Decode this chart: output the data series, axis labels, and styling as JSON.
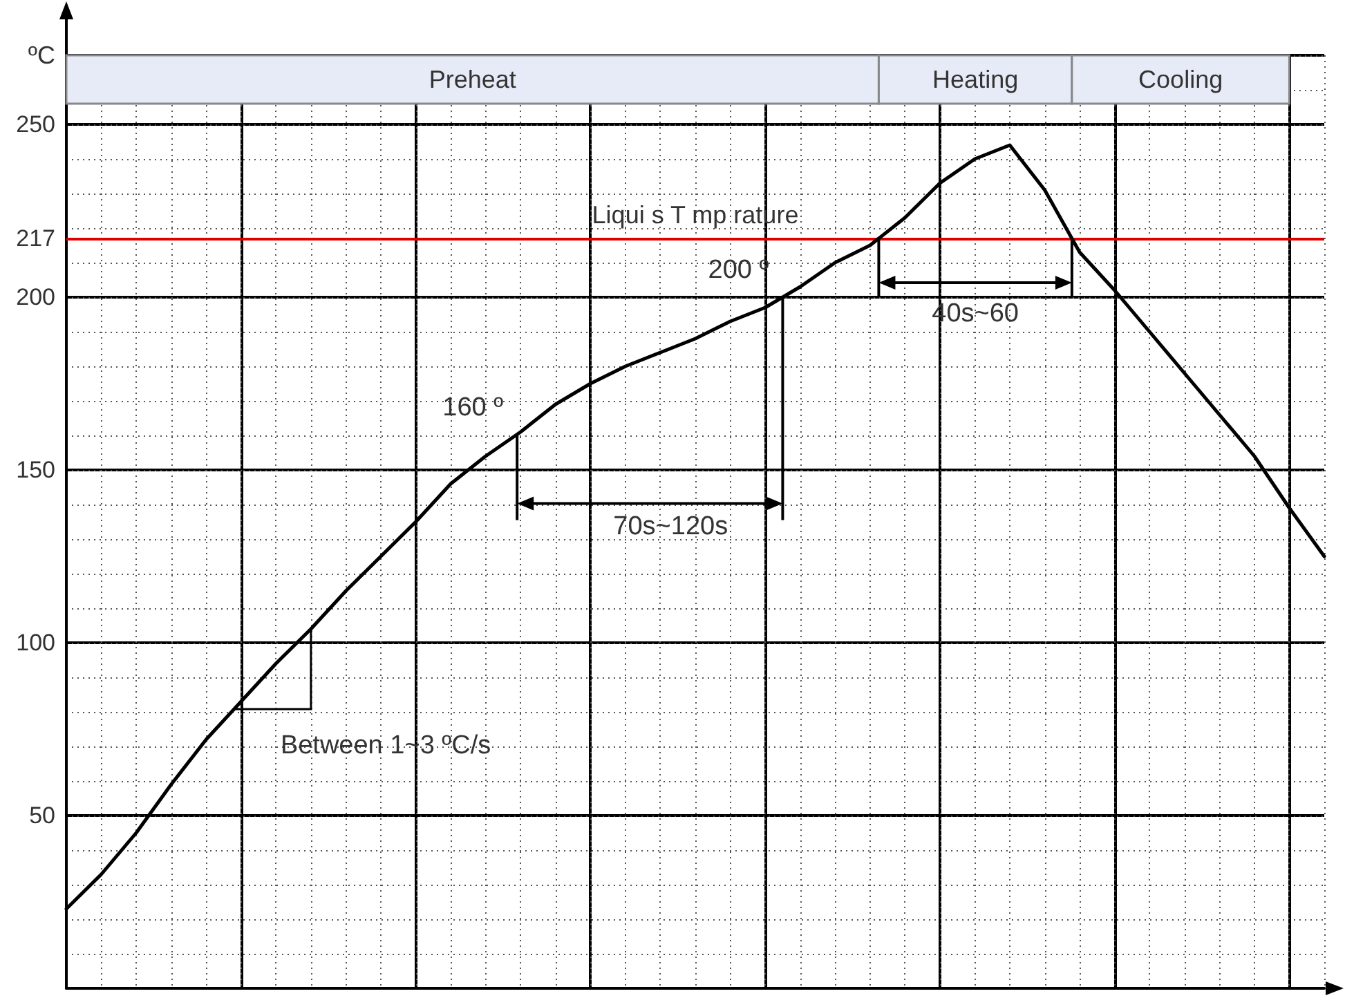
{
  "chart_data": {
    "type": "line",
    "ylabel": "ºC",
    "tick_labels": "y",
    "grid": true,
    "categories": [
      null,
      null,
      null,
      null,
      null,
      null,
      null,
      null,
      null,
      null,
      null,
      null,
      null,
      null,
      null,
      null,
      null,
      null,
      null,
      null,
      null,
      null,
      null,
      null,
      null,
      null,
      null,
      null,
      null,
      null,
      null,
      null,
      null,
      null,
      null,
      null,
      null
    ],
    "ylim": [
      0,
      270
    ],
    "yticks": [
      50,
      100,
      150,
      200,
      217,
      250
    ],
    "series": [
      {
        "color": "#000000",
        "values": [
          23,
          33,
          45,
          59,
          72,
          83,
          94,
          104,
          115,
          125,
          135,
          146,
          154,
          161,
          169,
          175,
          180,
          184,
          188,
          193,
          197,
          203,
          210,
          215,
          223,
          233,
          240,
          244,
          231,
          213,
          202,
          190,
          178,
          166,
          154,
          139,
          125
        ]
      }
    ],
    "ref_lines": [
      {
        "axis": "y",
        "value": 217,
        "label": "Liqui s T mp rature",
        "color": "#e00000"
      }
    ],
    "annotations": [
      "160 º",
      "200 º",
      "70s~120s",
      "40s~60",
      "Between 1~3 ºC/s",
      "Preheat",
      "Heating",
      "Cooling"
    ]
  }
}
